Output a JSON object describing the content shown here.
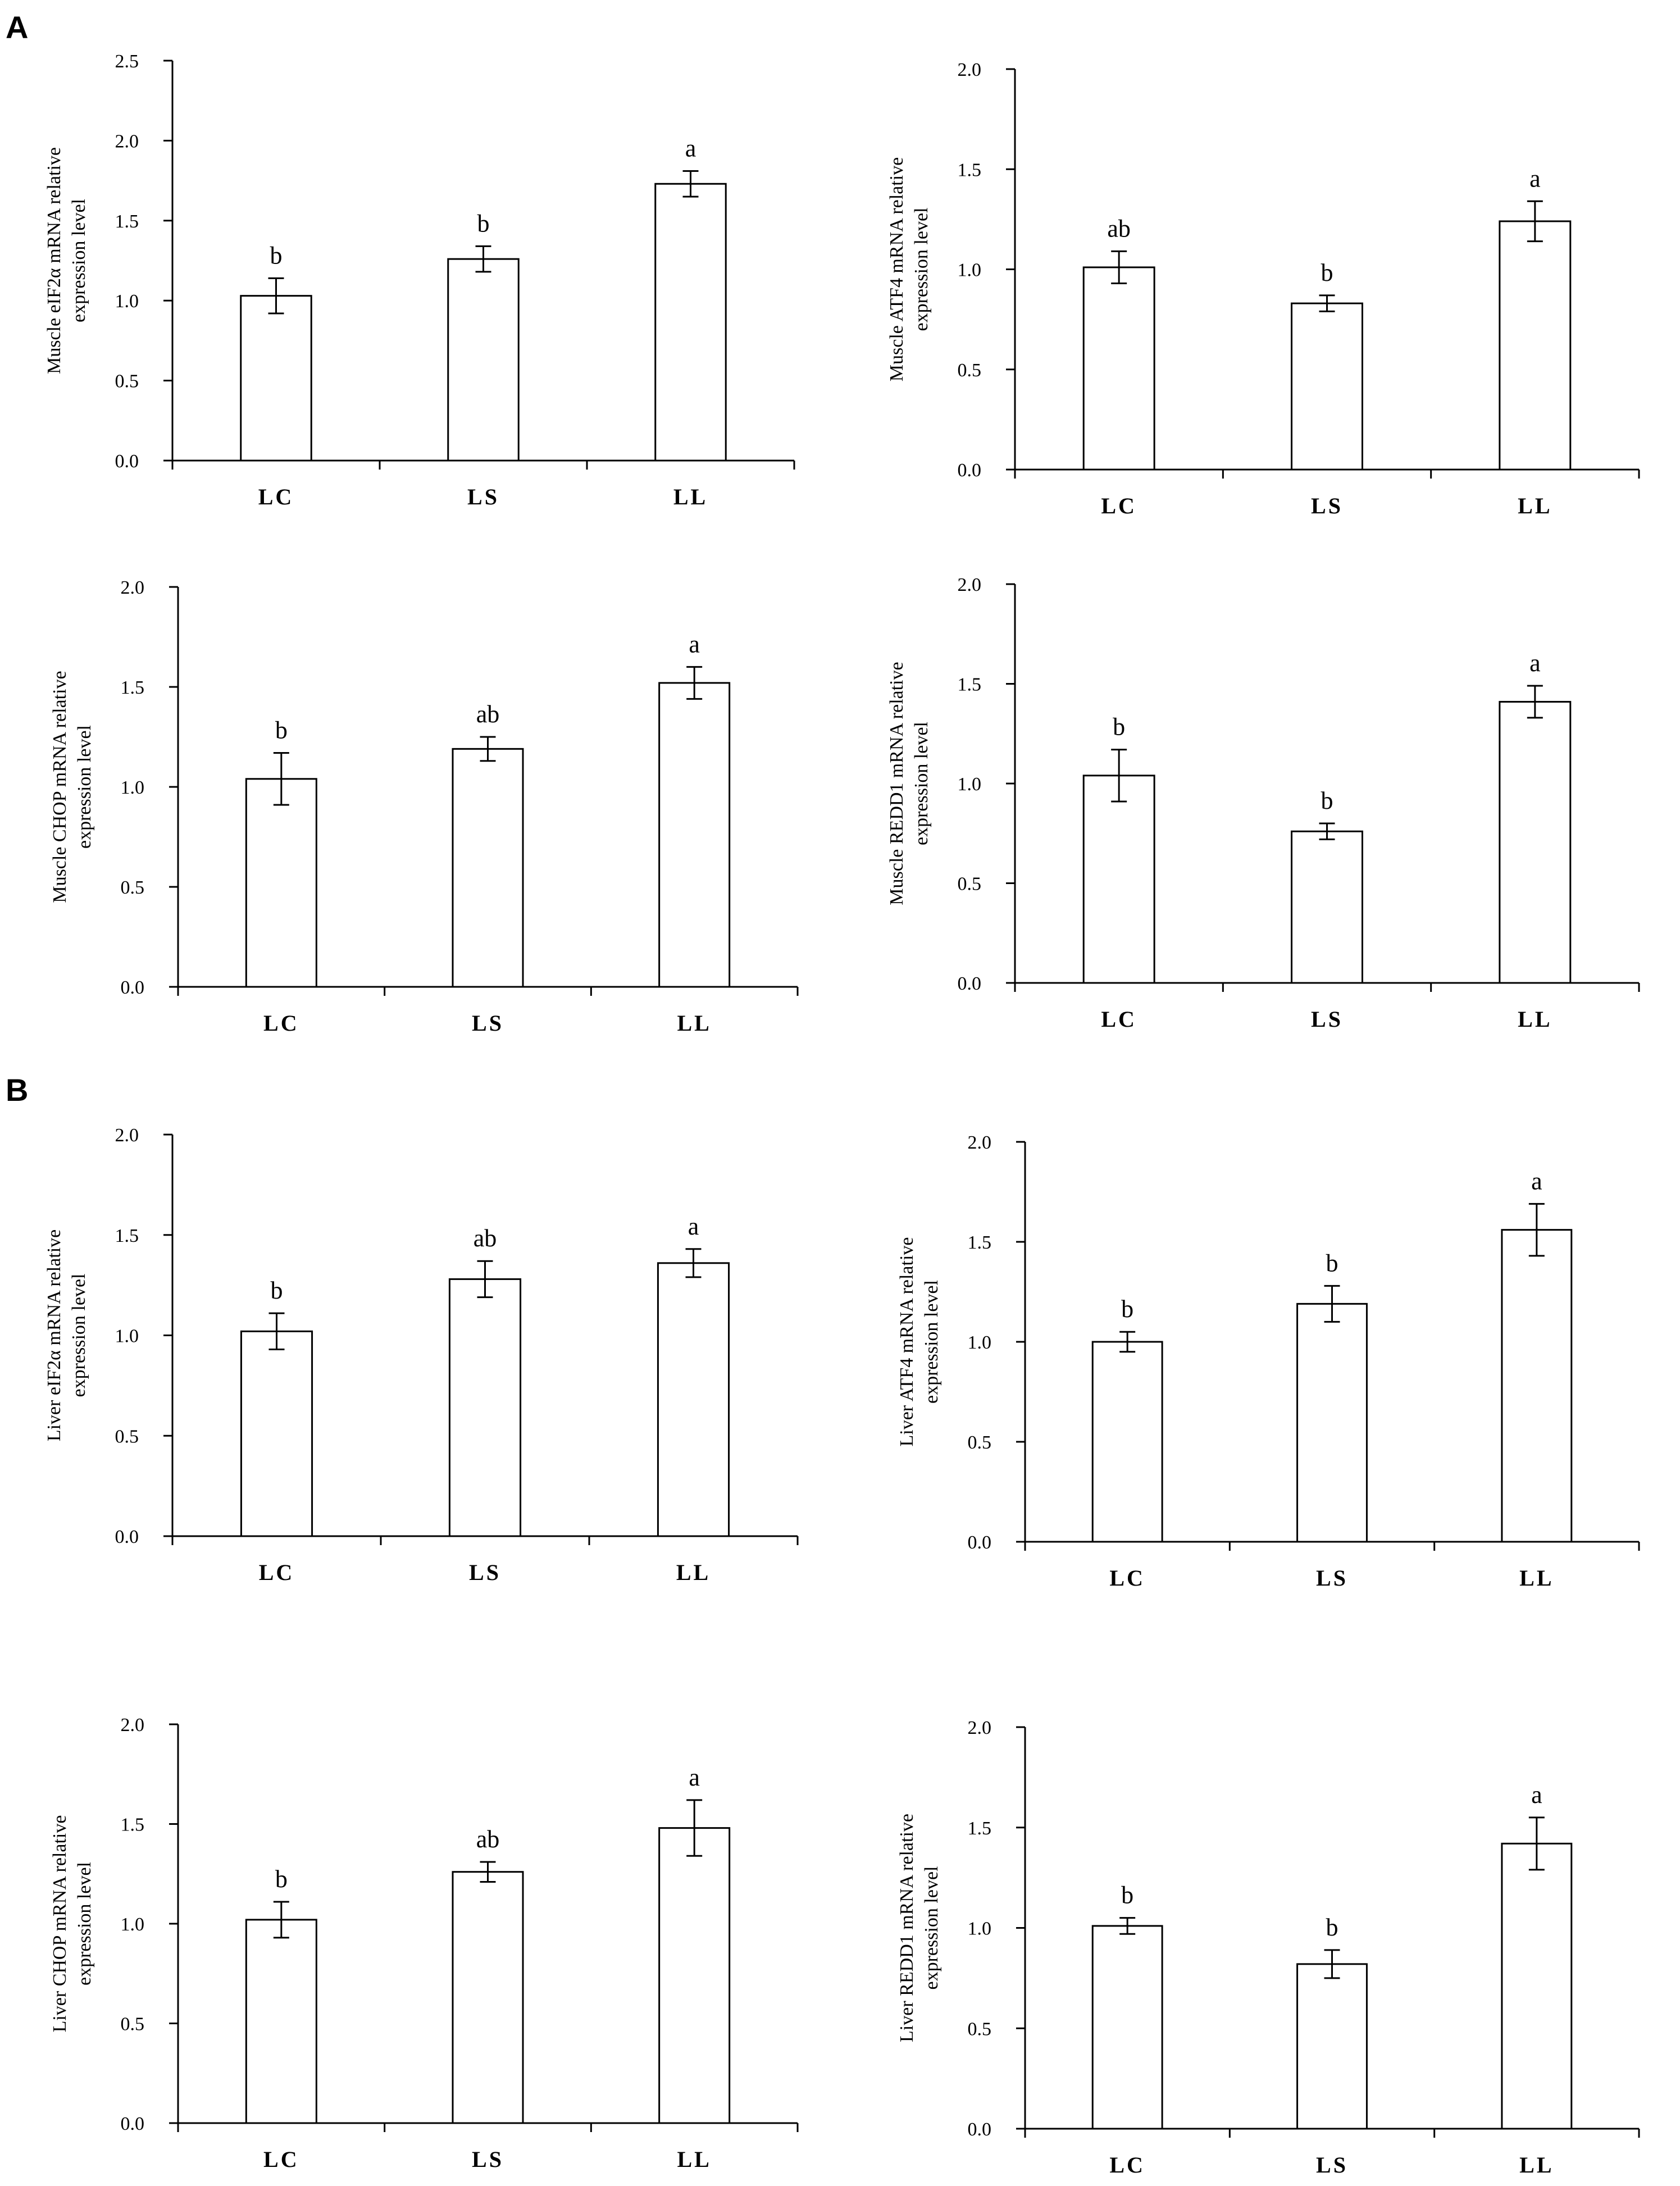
{
  "panel_labels": {
    "A": "A",
    "B": "B"
  },
  "chart_data": [
    {
      "type": "bar",
      "panel": "A",
      "ylabel": "Muscle eIF2α mRNA  relative expression level",
      "categories": [
        "LC",
        "LS",
        "LL"
      ],
      "values": [
        1.03,
        1.26,
        1.73
      ],
      "errors": [
        0.11,
        0.08,
        0.08
      ],
      "significance": [
        "b",
        "b",
        "a"
      ],
      "ylim": [
        0,
        2.5
      ],
      "yticks": [
        "0.0",
        "0.5",
        "1.0",
        "1.5",
        "2.0",
        "2.5"
      ]
    },
    {
      "type": "bar",
      "panel": "A",
      "ylabel": "Muscle ATF4 mRNA  relative expression level",
      "categories": [
        "LC",
        "LS",
        "LL"
      ],
      "values": [
        1.01,
        0.83,
        1.24
      ],
      "errors": [
        0.08,
        0.04,
        0.1
      ],
      "significance": [
        "ab",
        "b",
        "a"
      ],
      "ylim": [
        0,
        2.0
      ],
      "yticks": [
        "0.0",
        "0.5",
        "1.0",
        "1.5",
        "2.0"
      ]
    },
    {
      "type": "bar",
      "panel": "A",
      "ylabel": "Muscle CHOP mRNA  relative expression level",
      "categories": [
        "LC",
        "LS",
        "LL"
      ],
      "values": [
        1.04,
        1.19,
        1.52
      ],
      "errors": [
        0.13,
        0.06,
        0.08
      ],
      "significance": [
        "b",
        "ab",
        "a"
      ],
      "ylim": [
        0,
        2.0
      ],
      "yticks": [
        "0.0",
        "0.5",
        "1.0",
        "1.5",
        "2.0"
      ]
    },
    {
      "type": "bar",
      "panel": "A",
      "ylabel": "Muscle REDD1  mRNA  relative expression level",
      "categories": [
        "LC",
        "LS",
        "LL"
      ],
      "values": [
        1.04,
        0.76,
        1.41
      ],
      "errors": [
        0.13,
        0.04,
        0.08
      ],
      "significance": [
        "b",
        "b",
        "a"
      ],
      "ylim": [
        0,
        2.0
      ],
      "yticks": [
        "0.0",
        "0.5",
        "1.0",
        "1.5",
        "2.0"
      ]
    },
    {
      "type": "bar",
      "panel": "B",
      "ylabel": "Liver eIF2α mRNA  relative expression level",
      "categories": [
        "LC",
        "LS",
        "LL"
      ],
      "values": [
        1.02,
        1.28,
        1.36
      ],
      "errors": [
        0.09,
        0.09,
        0.07
      ],
      "significance": [
        "b",
        "ab",
        "a"
      ],
      "ylim": [
        0,
        2.0
      ],
      "yticks": [
        "0.0",
        "0.5",
        "1.0",
        "1.5",
        "2.0"
      ]
    },
    {
      "type": "bar",
      "panel": "B",
      "ylabel": "Liver ATF4 mRNA  relative expression level",
      "categories": [
        "LC",
        "LS",
        "LL"
      ],
      "values": [
        1.0,
        1.19,
        1.56
      ],
      "errors": [
        0.05,
        0.09,
        0.13
      ],
      "significance": [
        "b",
        "b",
        "a"
      ],
      "ylim": [
        0,
        2.0
      ],
      "yticks": [
        "0.0",
        "0.5",
        "1.0",
        "1.5",
        "2.0"
      ]
    },
    {
      "type": "bar",
      "panel": "B",
      "ylabel": "Liver CHOP  mRNA  relative expression level",
      "categories": [
        "LC",
        "LS",
        "LL"
      ],
      "values": [
        1.02,
        1.26,
        1.48
      ],
      "errors": [
        0.09,
        0.05,
        0.14
      ],
      "significance": [
        "b",
        "ab",
        "a"
      ],
      "ylim": [
        0,
        2.0
      ],
      "yticks": [
        "0.0",
        "0.5",
        "1.0",
        "1.5",
        "2.0"
      ]
    },
    {
      "type": "bar",
      "panel": "B",
      "ylabel": "Liver REDD1  mRNA  relative expression level",
      "categories": [
        "LC",
        "LS",
        "LL"
      ],
      "values": [
        1.01,
        0.82,
        1.42
      ],
      "errors": [
        0.04,
        0.07,
        0.13
      ],
      "significance": [
        "b",
        "b",
        "a"
      ],
      "ylim": [
        0,
        2.0
      ],
      "yticks": [
        "0.0",
        "0.5",
        "1.0",
        "1.5",
        "2.0"
      ]
    }
  ]
}
